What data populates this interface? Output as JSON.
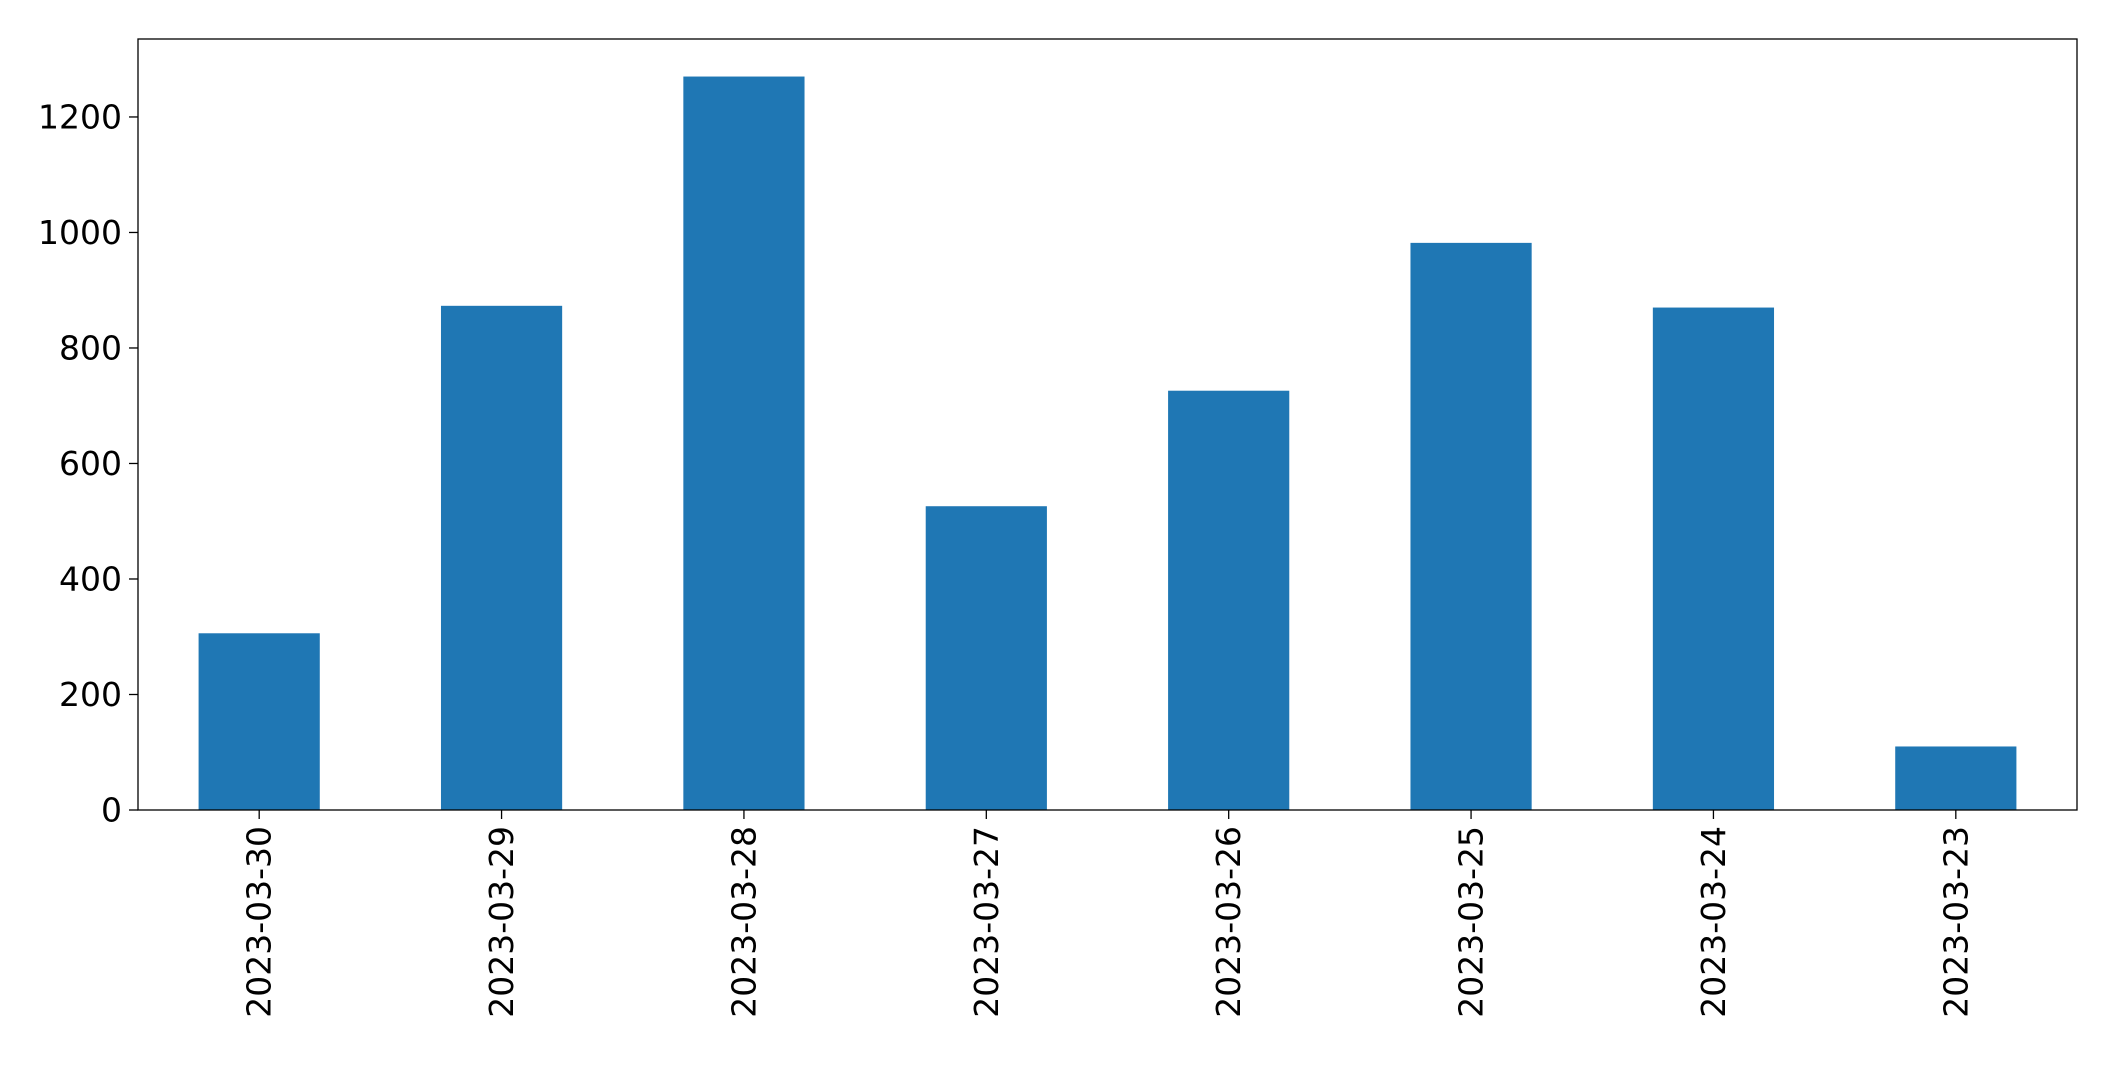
{
  "chart_data": {
    "type": "bar",
    "title": "",
    "xlabel": "",
    "ylabel": "",
    "categories": [
      "2023-03-30",
      "2023-03-29",
      "2023-03-28",
      "2023-03-27",
      "2023-03-26",
      "2023-03-25",
      "2023-03-24",
      "2023-03-23"
    ],
    "values": [
      306,
      873,
      1270,
      526,
      726,
      982,
      870,
      110
    ],
    "ylim": [
      0,
      1335
    ],
    "yticks": [
      0,
      200,
      400,
      600,
      800,
      1000,
      1200
    ],
    "grid": false,
    "legend": "none",
    "bar_color": "#1f77b4",
    "x_tick_rotation": "vertical"
  }
}
